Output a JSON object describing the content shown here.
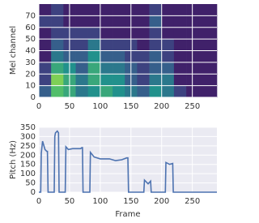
{
  "chart_data": [
    {
      "type": "heatmap",
      "ylabel": "Mel channel",
      "colormap": "viridis",
      "xbins": [
        0,
        20,
        40,
        60,
        80,
        100,
        120,
        140,
        160,
        180,
        200,
        220,
        240,
        260,
        280,
        290
      ],
      "ybins": [
        0,
        10,
        20,
        30,
        40,
        50,
        60,
        70,
        80
      ],
      "z": [
        [
          0.3,
          0.7,
          0.6,
          0.4,
          0.5,
          0.6,
          0.5,
          0.4,
          0.3,
          0.5,
          0.4,
          0.2,
          0.1,
          0.1,
          0.1
        ],
        [
          0.2,
          0.8,
          0.6,
          0.4,
          0.6,
          0.5,
          0.5,
          0.3,
          0.2,
          0.4,
          0.4,
          0.1,
          0.1,
          0.1,
          0.1
        ],
        [
          0.2,
          0.6,
          0.5,
          0.3,
          0.6,
          0.4,
          0.4,
          0.3,
          0.2,
          0.3,
          0.3,
          0.1,
          0.1,
          0.1,
          0.1
        ],
        [
          0.1,
          0.4,
          0.3,
          0.3,
          0.5,
          0.3,
          0.3,
          0.2,
          0.2,
          0.3,
          0.2,
          0.1,
          0.1,
          0.1,
          0.1
        ],
        [
          0.1,
          0.3,
          0.2,
          0.2,
          0.4,
          0.2,
          0.2,
          0.2,
          0.1,
          0.2,
          0.2,
          0.1,
          0.1,
          0.1,
          0.1
        ],
        [
          0.1,
          0.2,
          0.2,
          0.2,
          0.2,
          0.1,
          0.1,
          0.1,
          0.1,
          0.2,
          0.1,
          0.1,
          0.1,
          0.1,
          0.1
        ],
        [
          0.2,
          0.2,
          0.1,
          0.1,
          0.1,
          0.1,
          0.1,
          0.1,
          0.1,
          0.3,
          0.1,
          0.1,
          0.1,
          0.1,
          0.1
        ],
        [
          0.1,
          0.2,
          0.1,
          0.1,
          0.1,
          0.1,
          0.1,
          0.1,
          0.1,
          0.2,
          0.1,
          0.1,
          0.1,
          0.1,
          0.1
        ]
      ],
      "xlim": [
        0,
        290
      ],
      "xticks": [
        0,
        50,
        100,
        150,
        200,
        250
      ],
      "ylim": [
        0,
        80
      ],
      "yticks": [
        0,
        10,
        20,
        30,
        40,
        50,
        60,
        70
      ],
      "grid": true
    },
    {
      "type": "line",
      "xlabel": "Frame",
      "ylabel": "Pitch (Hz)",
      "color": "#4c72b0",
      "x": [
        0,
        3,
        4,
        6,
        10,
        13,
        14,
        15,
        25,
        26,
        27,
        30,
        32,
        33,
        43,
        44,
        48,
        55,
        68,
        70,
        71,
        72,
        83,
        84,
        90,
        100,
        115,
        125,
        135,
        143,
        145,
        146,
        170,
        171,
        172,
        178,
        182,
        183,
        205,
        206,
        207,
        213,
        218,
        219,
        290
      ],
      "values": [
        0,
        0,
        210,
        275,
        230,
        220,
        220,
        0,
        0,
        300,
        320,
        330,
        320,
        0,
        0,
        245,
        230,
        235,
        235,
        240,
        240,
        0,
        0,
        215,
        190,
        180,
        180,
        170,
        175,
        185,
        185,
        0,
        0,
        0,
        65,
        45,
        60,
        0,
        0,
        0,
        160,
        150,
        155,
        0,
        0
      ],
      "xlim": [
        0,
        290
      ],
      "xticks": [
        0,
        50,
        100,
        150,
        200,
        250
      ],
      "ylim": [
        0,
        350
      ],
      "yticks": [
        0,
        50,
        100,
        150,
        200,
        250,
        300,
        350
      ],
      "grid": true
    }
  ]
}
